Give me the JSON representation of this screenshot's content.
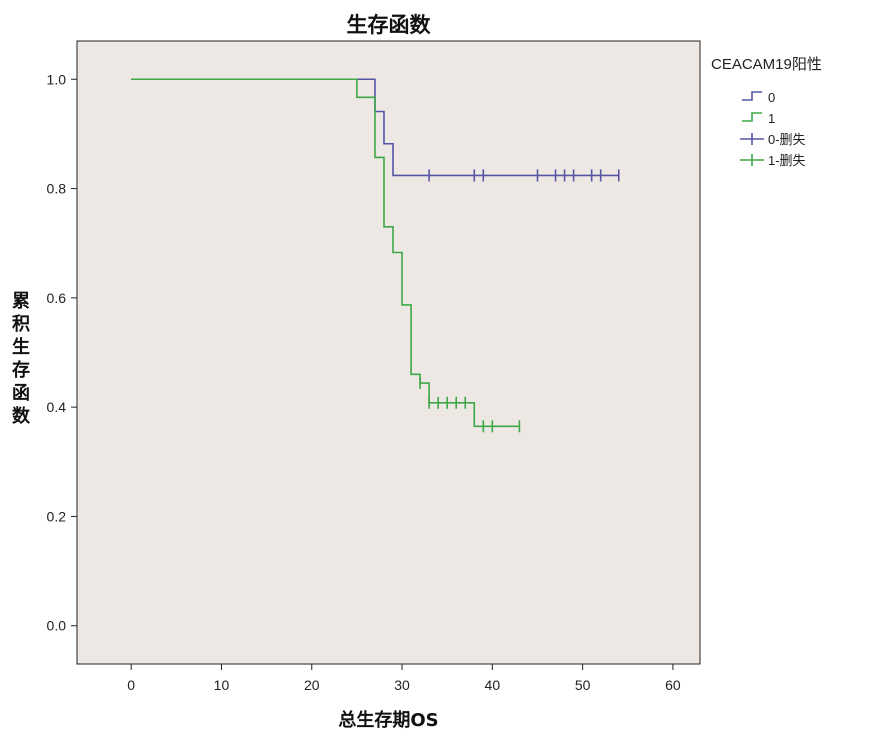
{
  "chart_data": {
    "type": "line",
    "title": "生存函数",
    "xlabel": "总生存期OS",
    "ylabel": "累积生存函数",
    "xlim": [
      -6,
      63
    ],
    "ylim": [
      -0.07,
      1.07
    ],
    "xticks": [
      "0",
      "10",
      "20",
      "30",
      "40",
      "50",
      "60"
    ],
    "yticks": [
      "0.0",
      "0.2",
      "0.4",
      "0.6",
      "0.8",
      "1.0"
    ],
    "grid": false,
    "background": "#ede8e3",
    "legend_position": "top-right",
    "legend_title": "CEACAM19阳性",
    "legend_items": [
      {
        "label": "0",
        "kind": "step",
        "color": "#5555a4"
      },
      {
        "label": "1",
        "kind": "step",
        "color": "#3ea847"
      },
      {
        "label": "0-删失",
        "kind": "censor",
        "color": "#5555a4"
      },
      {
        "label": "1-删失",
        "kind": "censor",
        "color": "#3ea847"
      }
    ],
    "series": [
      {
        "name": "0",
        "color": "#5555a4",
        "steps": [
          [
            0,
            1.0
          ],
          [
            27,
            0.941
          ],
          [
            28,
            0.882
          ],
          [
            29,
            0.824
          ],
          [
            54,
            0.824
          ]
        ],
        "censored": [
          [
            33,
            0.824
          ],
          [
            38,
            0.824
          ],
          [
            39,
            0.824
          ],
          [
            45,
            0.824
          ],
          [
            47,
            0.824
          ],
          [
            48,
            0.824
          ],
          [
            49,
            0.824
          ],
          [
            51,
            0.824
          ],
          [
            52,
            0.824
          ],
          [
            54,
            0.824
          ]
        ]
      },
      {
        "name": "1",
        "color": "#3ea847",
        "steps": [
          [
            0,
            1.0
          ],
          [
            25,
            0.967
          ],
          [
            27,
            0.857
          ],
          [
            28,
            0.73
          ],
          [
            29,
            0.683
          ],
          [
            30,
            0.587
          ],
          [
            31,
            0.46
          ],
          [
            32,
            0.444
          ],
          [
            33,
            0.408
          ],
          [
            38,
            0.365
          ],
          [
            43,
            0.365
          ]
        ],
        "censored": [
          [
            32,
            0.444
          ],
          [
            33,
            0.408
          ],
          [
            34,
            0.408
          ],
          [
            35,
            0.408
          ],
          [
            36,
            0.408
          ],
          [
            37,
            0.408
          ],
          [
            39,
            0.365
          ],
          [
            40,
            0.365
          ],
          [
            43,
            0.365
          ]
        ]
      }
    ]
  }
}
